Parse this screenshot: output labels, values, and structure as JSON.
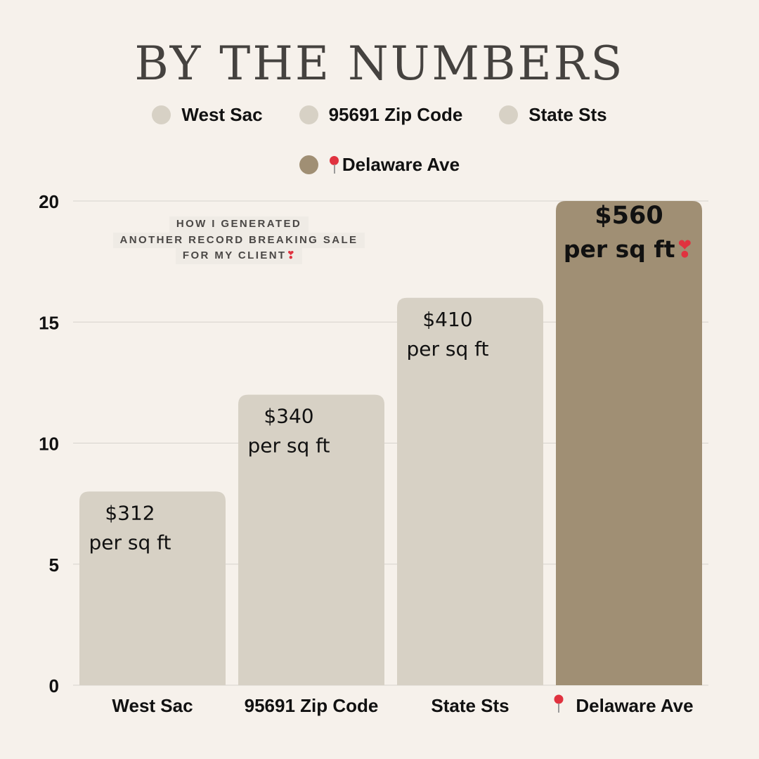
{
  "title": "BY THE NUMBERS",
  "legend": [
    {
      "label": "West Sac",
      "color": "#d7d1c5",
      "pin": false
    },
    {
      "label": "95691 Zip Code",
      "color": "#d7d1c5",
      "pin": false
    },
    {
      "label": "State Sts",
      "color": "#d7d1c5",
      "pin": false
    },
    {
      "label": "Delaware Ave",
      "color": "#a08f74",
      "pin": true
    }
  ],
  "note": {
    "lines": [
      "HOW I GENERATED",
      "ANOTHER RECORD BREAKING SALE",
      "FOR MY CLIENT"
    ],
    "emoji": "❣"
  },
  "chart_data": {
    "type": "bar",
    "title": "BY THE NUMBERS",
    "categories": [
      "West Sac",
      "95691 Zip Code",
      "State Sts",
      "Delaware Ave"
    ],
    "values": [
      8,
      12,
      16,
      20
    ],
    "ylim": [
      0,
      20
    ],
    "yticks": [
      "0",
      "5",
      "10",
      "15",
      "20"
    ],
    "ytick_values": [
      0,
      5,
      10,
      15,
      20
    ],
    "grid": true,
    "colors": [
      "#d7d1c5",
      "#d7d1c5",
      "#d7d1c5",
      "#a08f74"
    ],
    "pin_category": "Delaware Ave",
    "data_labels": [
      {
        "price": "$312",
        "unit": "per sq ft",
        "emphasis": false
      },
      {
        "price": "$340",
        "unit": "per sq ft",
        "emphasis": false
      },
      {
        "price": "$410",
        "unit": "per sq ft",
        "emphasis": false
      },
      {
        "price": "$560",
        "unit": "per sq ft",
        "emphasis": true,
        "emoji": "❣"
      }
    ]
  }
}
